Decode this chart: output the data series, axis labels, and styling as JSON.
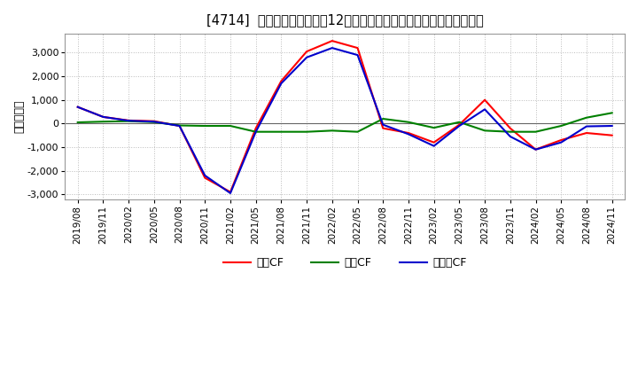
{
  "title": "[4714]  キャッシュフローの12か月移動合計の対前年同期増減額の推移",
  "ylabel": "（百万円）",
  "background_color": "#ffffff",
  "grid_color": "#bbbbbb",
  "x_labels": [
    "2019/08",
    "2019/11",
    "2020/02",
    "2020/05",
    "2020/08",
    "2020/11",
    "2021/02",
    "2021/05",
    "2021/08",
    "2021/11",
    "2022/02",
    "2022/05",
    "2022/08",
    "2022/11",
    "2023/02",
    "2023/05",
    "2023/08",
    "2023/11",
    "2024/02",
    "2024/05",
    "2024/08",
    "2024/11"
  ],
  "operating_cf": [
    700,
    280,
    130,
    100,
    -100,
    -2300,
    -2900,
    -200,
    1800,
    3050,
    3500,
    3200,
    -200,
    -400,
    -800,
    -50,
    1000,
    -200,
    -1100,
    -700,
    -400,
    -500
  ],
  "investment_cf": [
    50,
    80,
    100,
    60,
    -80,
    -100,
    -100,
    -350,
    -350,
    -350,
    -300,
    -350,
    200,
    60,
    -180,
    60,
    -300,
    -350,
    -350,
    -100,
    250,
    450
  ],
  "free_cf": [
    700,
    280,
    120,
    80,
    -100,
    -2200,
    -2950,
    -350,
    1700,
    2800,
    3200,
    2900,
    -50,
    -450,
    -950,
    -100,
    600,
    -550,
    -1100,
    -800,
    -120,
    -100
  ],
  "ylim": [
    -3200,
    3800
  ],
  "yticks": [
    -3000,
    -2000,
    -1000,
    0,
    1000,
    2000,
    3000
  ],
  "line_colors": {
    "operating": "#ff0000",
    "investment": "#008000",
    "free": "#0000cc"
  },
  "legend_labels": {
    "operating": "営業CF",
    "investment": "投資CF",
    "free": "フリーCF"
  }
}
